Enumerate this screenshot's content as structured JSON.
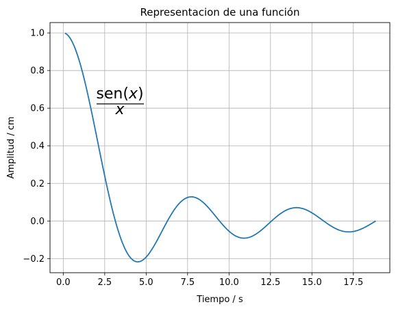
{
  "chart_data": {
    "type": "line",
    "title": "Representacion de una función",
    "xlabel": "Tiempo / s",
    "ylabel": "Amplitud / cm",
    "xlim": [
      -0.8,
      19.7
    ],
    "ylim": [
      -0.275,
      1.055
    ],
    "x_ticks": [
      0.0,
      2.5,
      5.0,
      7.5,
      10.0,
      12.5,
      15.0,
      17.5
    ],
    "x_tick_labels": [
      "0.0",
      "2.5",
      "5.0",
      "7.5",
      "10.0",
      "12.5",
      "15.0",
      "17.5"
    ],
    "y_ticks": [
      -0.2,
      0.0,
      0.2,
      0.4,
      0.6,
      0.8,
      1.0
    ],
    "y_tick_labels": [
      "−0.2",
      "0.0",
      "0.2",
      "0.4",
      "0.6",
      "0.8",
      "1.0"
    ],
    "grid": true,
    "series": [
      {
        "function": "sin(x)/x",
        "x_range": [
          0.1,
          18.85
        ],
        "color": "#1f77b4"
      }
    ],
    "annotation": {
      "numerator_prefix": "sen(",
      "numerator_var": "x",
      "numerator_suffix": ")",
      "denominator": "x"
    }
  }
}
